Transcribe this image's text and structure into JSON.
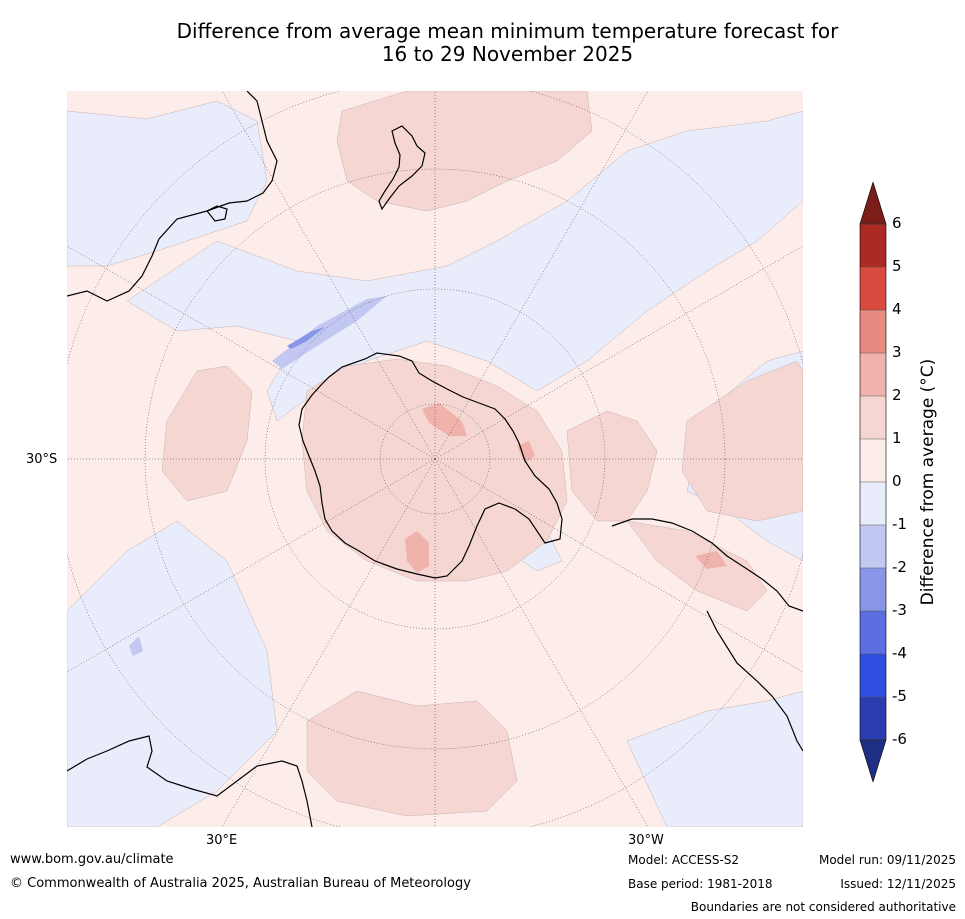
{
  "title": {
    "line1": "Difference from average mean minimum temperature forecast for",
    "line2": "16 to 29 November 2025"
  },
  "map": {
    "lat_label": "30°S",
    "lon_label_east": "30°E",
    "lon_label_west": "30°W"
  },
  "colorbar": {
    "title": "Difference from average (°C)",
    "ticks": [
      "6",
      "5",
      "4",
      "3",
      "2",
      "1",
      "0",
      "-1",
      "-2",
      "-3",
      "-4",
      "-5",
      "-6"
    ],
    "colors": [
      "#7b1e1a",
      "#ad2a24",
      "#d94a3f",
      "#e98a80",
      "#efb3ab",
      "#f6d6d2",
      "#fcecea",
      "#e9ecfb",
      "#c2c8f2",
      "#8996e8",
      "#5b6fe0",
      "#2f4fe0",
      "#2a3eb2",
      "#1f2f86"
    ]
  },
  "footer": {
    "website": "www.bom.gov.au/climate",
    "copyright": "© Commonwealth of Australia 2025, Australian Bureau of Meteorology",
    "model": "Model: ACCESS-S2",
    "base_period": "Base period: 1981-2018",
    "model_run": "Model run: 09/11/2025",
    "issued": "Issued: 12/11/2025",
    "disclaimer": "Boundaries are not considered authoritative"
  }
}
